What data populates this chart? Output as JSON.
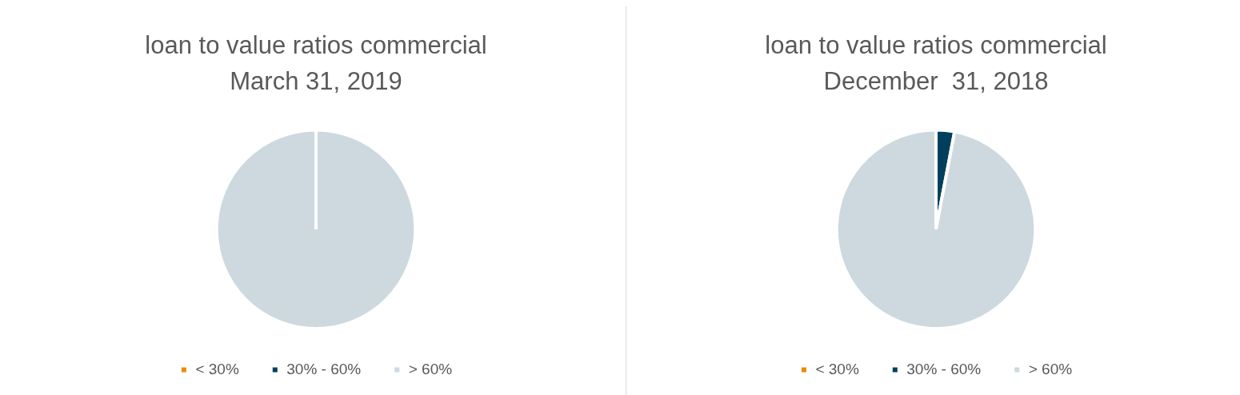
{
  "chart_data": [
    {
      "type": "pie",
      "title": "loan to value ratios commercial",
      "subtitle": "March 31, 2019",
      "categories": [
        "< 30%",
        "30% - 60%",
        "> 60%"
      ],
      "values": [
        0,
        0,
        100
      ],
      "colors": [
        "#e88b00",
        "#00405e",
        "#cdd9df"
      ],
      "legend": "bottom"
    },
    {
      "type": "pie",
      "title": "loan to value ratios commercial",
      "subtitle": "December  31, 2018",
      "categories": [
        "< 30%",
        "30% - 60%",
        "> 60%"
      ],
      "values": [
        0,
        3,
        97
      ],
      "colors": [
        "#e88b00",
        "#00405e",
        "#cdd9df"
      ],
      "legend": "bottom"
    }
  ]
}
